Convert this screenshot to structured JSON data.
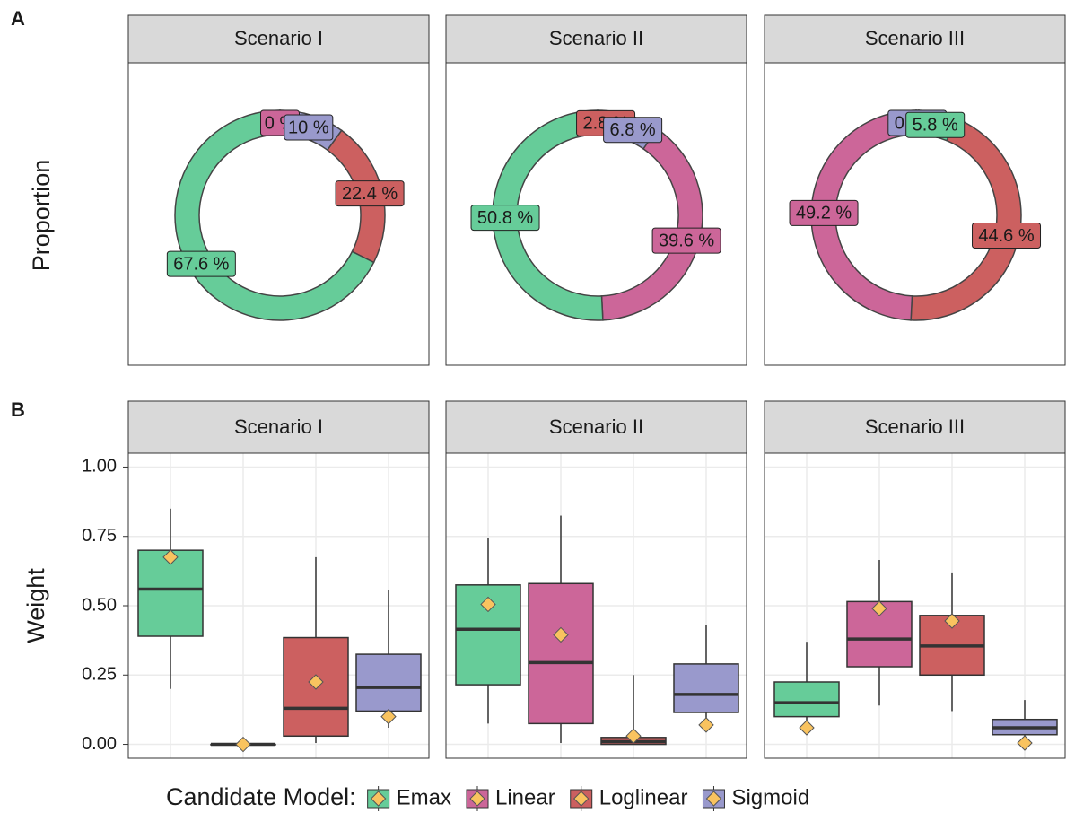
{
  "chart_data": [
    {
      "type": "pie",
      "tag": "A",
      "ylabel": "Proportion",
      "facets": [
        {
          "title": "Scenario I",
          "categories": [
            "Linear",
            "Sigmoid",
            "Loglinear",
            "Emax"
          ],
          "values": [
            0,
            10,
            22.4,
            67.6
          ],
          "value_labels": [
            "0 %",
            "10 %",
            "22.4 %",
            "67.6 %"
          ]
        },
        {
          "title": "Scenario II",
          "categories": [
            "Loglinear",
            "Sigmoid",
            "Linear",
            "Emax"
          ],
          "values": [
            2.8,
            6.8,
            39.6,
            50.8
          ],
          "value_labels": [
            "2.8 %",
            "6.8 %",
            "39.6 %",
            "50.8 %"
          ]
        },
        {
          "title": "Scenario III",
          "categories": [
            "Sigmoid",
            "Emax",
            "Loglinear",
            "Linear"
          ],
          "values": [
            0.4,
            5.8,
            44.6,
            49.2
          ],
          "value_labels": [
            "0.4 %",
            "5.8 %",
            "44.6 %",
            "49.2 %"
          ]
        }
      ]
    },
    {
      "type": "box",
      "tag": "B",
      "ylabel": "Weight",
      "ylim": [
        -0.05,
        1.05
      ],
      "yticks": [
        {
          "value": 0,
          "label": "0.00"
        },
        {
          "value": 0.25,
          "label": "0.25"
        },
        {
          "value": 0.5,
          "label": "0.50"
        },
        {
          "value": 0.75,
          "label": "0.75"
        },
        {
          "value": 1,
          "label": "1.00"
        }
      ],
      "grid": true,
      "mean_color": "#f9c35f",
      "legend": {
        "title": "Candidate Model:",
        "names": [
          "Emax",
          "Linear",
          "Loglinear",
          "Sigmoid"
        ],
        "colors": [
          "#66cc99",
          "#cc6699",
          "#cc6060",
          "#9999cc"
        ]
      },
      "facets": [
        {
          "title": "Scenario I",
          "boxes": [
            {
              "min": 0.2,
              "q1": 0.39,
              "median": 0.56,
              "q3": 0.7,
              "max": 0.85,
              "mean": 0.675
            },
            {
              "min": 0,
              "q1": 0,
              "median": 0,
              "q3": 0,
              "max": 0,
              "mean": 0
            },
            {
              "min": 0.005,
              "q1": 0.03,
              "median": 0.13,
              "q3": 0.385,
              "max": 0.675,
              "mean": 0.225
            },
            {
              "min": 0.06,
              "q1": 0.12,
              "median": 0.205,
              "q3": 0.325,
              "max": 0.555,
              "mean": 0.1
            }
          ]
        },
        {
          "title": "Scenario II",
          "boxes": [
            {
              "min": 0.075,
              "q1": 0.215,
              "median": 0.415,
              "q3": 0.575,
              "max": 0.745,
              "mean": 0.505
            },
            {
              "min": 0.005,
              "q1": 0.075,
              "median": 0.295,
              "q3": 0.58,
              "max": 0.825,
              "mean": 0.395
            },
            {
              "min": 0,
              "q1": 0,
              "median": 0.01,
              "q3": 0.025,
              "max": 0.25,
              "mean": 0.03
            },
            {
              "min": 0.07,
              "q1": 0.115,
              "median": 0.18,
              "q3": 0.29,
              "max": 0.43,
              "mean": 0.07
            }
          ]
        },
        {
          "title": "Scenario III",
          "boxes": [
            {
              "min": 0.05,
              "q1": 0.1,
              "median": 0.15,
              "q3": 0.225,
              "max": 0.37,
              "mean": 0.06
            },
            {
              "min": 0.14,
              "q1": 0.28,
              "median": 0.38,
              "q3": 0.515,
              "max": 0.665,
              "mean": 0.49
            },
            {
              "min": 0.12,
              "q1": 0.25,
              "median": 0.355,
              "q3": 0.465,
              "max": 0.62,
              "mean": 0.445
            },
            {
              "min": 0.01,
              "q1": 0.035,
              "median": 0.06,
              "q3": 0.09,
              "max": 0.16,
              "mean": 0.005
            }
          ]
        }
      ]
    }
  ]
}
